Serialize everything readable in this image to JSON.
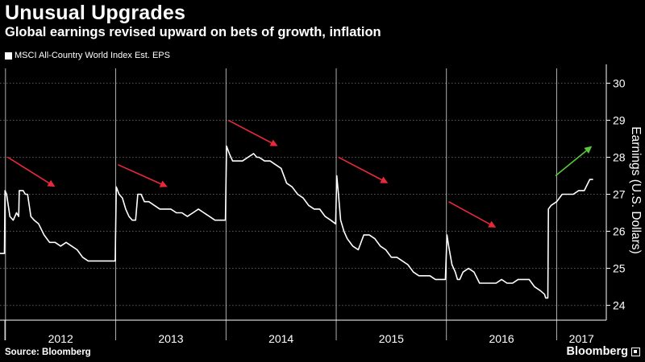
{
  "header": {
    "title": "Unusual Upgrades",
    "subtitle": "Global earnings revised upward on bets of growth, inflation"
  },
  "footer": {
    "source": "Source: Bloomberg",
    "brand": "Bloomberg"
  },
  "colors": {
    "background": "#000000",
    "line": "#ffffff",
    "down_arrow": "#e8293b",
    "up_arrow": "#58c93d",
    "grid": "#5a5a5a"
  },
  "chart_data": {
    "type": "line",
    "ylabel": "Earnings (U.S. Dollars)",
    "y_axis_side": "right",
    "ylim": [
      23.6,
      30.4
    ],
    "y_ticks": [
      24,
      25,
      26,
      27,
      28,
      29,
      30
    ],
    "xlim": [
      2011.95,
      2017.45
    ],
    "x_tick_labels": [
      "2012",
      "2013",
      "2014",
      "2015",
      "2016",
      "2017"
    ],
    "grid": "horizontal dotted",
    "legend": {
      "position": "top-left",
      "entries": [
        "MSCI All-Country World Index Est. EPS"
      ]
    },
    "series": [
      {
        "name": "MSCI All-Country World Index Est. EPS",
        "x": [
          2011.95,
          2011.99,
          2011.995,
          2012.01,
          2012.04,
          2012.07,
          2012.1,
          2012.12,
          2012.125,
          2012.14,
          2012.16,
          2012.18,
          2012.2,
          2012.23,
          2012.26,
          2012.3,
          2012.35,
          2012.4,
          2012.45,
          2012.5,
          2012.55,
          2012.6,
          2012.65,
          2012.7,
          2012.75,
          2012.8,
          2012.85,
          2012.9,
          2012.95,
          2012.995,
          2013.005,
          2013.03,
          2013.06,
          2013.09,
          2013.12,
          2013.15,
          2013.18,
          2013.2,
          2013.23,
          2013.26,
          2013.3,
          2013.35,
          2013.4,
          2013.45,
          2013.5,
          2013.55,
          2013.6,
          2013.65,
          2013.7,
          2013.75,
          2013.8,
          2013.85,
          2013.9,
          2013.95,
          2013.995,
          2014.005,
          2014.03,
          2014.06,
          2014.1,
          2014.15,
          2014.2,
          2014.25,
          2014.28,
          2014.3,
          2014.35,
          2014.4,
          2014.45,
          2014.5,
          2014.55,
          2014.6,
          2014.65,
          2014.7,
          2014.75,
          2014.8,
          2014.85,
          2014.9,
          2014.95,
          2014.995,
          2015.005,
          2015.02,
          2015.04,
          2015.07,
          2015.1,
          2015.15,
          2015.2,
          2015.25,
          2015.3,
          2015.35,
          2015.4,
          2015.45,
          2015.5,
          2015.55,
          2015.6,
          2015.65,
          2015.7,
          2015.75,
          2015.8,
          2015.85,
          2015.9,
          2015.95,
          2015.99,
          2016.005,
          2016.02,
          2016.05,
          2016.08,
          2016.1,
          2016.12,
          2016.15,
          2016.2,
          2016.25,
          2016.3,
          2016.35,
          2016.4,
          2016.45,
          2016.5,
          2016.55,
          2016.6,
          2016.65,
          2016.7,
          2016.75,
          2016.8,
          2016.85,
          2016.89,
          2016.9,
          2016.92,
          2016.925,
          2016.95,
          2017.0,
          2017.05,
          2017.1,
          2017.15,
          2017.2,
          2017.25,
          2017.3,
          2017.33
        ],
        "y": [
          25.4,
          25.4,
          27.1,
          27.0,
          26.4,
          26.3,
          26.5,
          26.4,
          27.1,
          27.1,
          27.1,
          27.0,
          27.0,
          26.4,
          26.3,
          26.2,
          25.9,
          25.7,
          25.7,
          25.6,
          25.7,
          25.6,
          25.5,
          25.3,
          25.2,
          25.2,
          25.2,
          25.2,
          25.2,
          25.2,
          27.2,
          27.0,
          26.9,
          26.6,
          26.4,
          26.3,
          26.3,
          27.0,
          27.0,
          26.8,
          26.8,
          26.7,
          26.6,
          26.6,
          26.6,
          26.5,
          26.5,
          26.4,
          26.5,
          26.6,
          26.5,
          26.4,
          26.3,
          26.3,
          26.3,
          28.3,
          28.1,
          27.9,
          27.9,
          27.9,
          28.0,
          28.1,
          28.0,
          28.0,
          27.9,
          27.9,
          27.8,
          27.7,
          27.3,
          27.2,
          27.0,
          26.9,
          26.7,
          26.6,
          26.6,
          26.4,
          26.3,
          26.2,
          27.5,
          27.0,
          26.3,
          26.0,
          25.8,
          25.6,
          25.5,
          25.9,
          25.9,
          25.8,
          25.6,
          25.5,
          25.3,
          25.3,
          25.2,
          25.1,
          24.9,
          24.8,
          24.8,
          24.8,
          24.7,
          24.7,
          24.7,
          25.9,
          25.6,
          25.1,
          24.9,
          24.7,
          24.7,
          24.9,
          25.0,
          24.9,
          24.6,
          24.6,
          24.6,
          24.6,
          24.7,
          24.6,
          24.6,
          24.7,
          24.7,
          24.7,
          24.5,
          24.4,
          24.3,
          24.2,
          24.2,
          26.6,
          26.7,
          26.8,
          27.0,
          27.0,
          27.0,
          27.1,
          27.1,
          27.4,
          27.4
        ]
      }
    ],
    "annotations": [
      {
        "kind": "arrow",
        "color": "down_arrow",
        "from": [
          2012.02,
          28.0
        ],
        "to": [
          2012.45,
          27.2
        ]
      },
      {
        "kind": "arrow",
        "color": "down_arrow",
        "from": [
          2013.02,
          27.8
        ],
        "to": [
          2013.47,
          27.2
        ]
      },
      {
        "kind": "arrow",
        "color": "down_arrow",
        "from": [
          2014.02,
          29.0
        ],
        "to": [
          2014.47,
          28.3
        ]
      },
      {
        "kind": "arrow",
        "color": "down_arrow",
        "from": [
          2015.02,
          28.0
        ],
        "to": [
          2015.47,
          27.3
        ]
      },
      {
        "kind": "arrow",
        "color": "down_arrow",
        "from": [
          2016.02,
          26.8
        ],
        "to": [
          2016.45,
          26.1
        ]
      },
      {
        "kind": "arrow",
        "color": "up_arrow",
        "from": [
          2016.99,
          27.5
        ],
        "to": [
          2017.32,
          28.3
        ]
      }
    ]
  }
}
